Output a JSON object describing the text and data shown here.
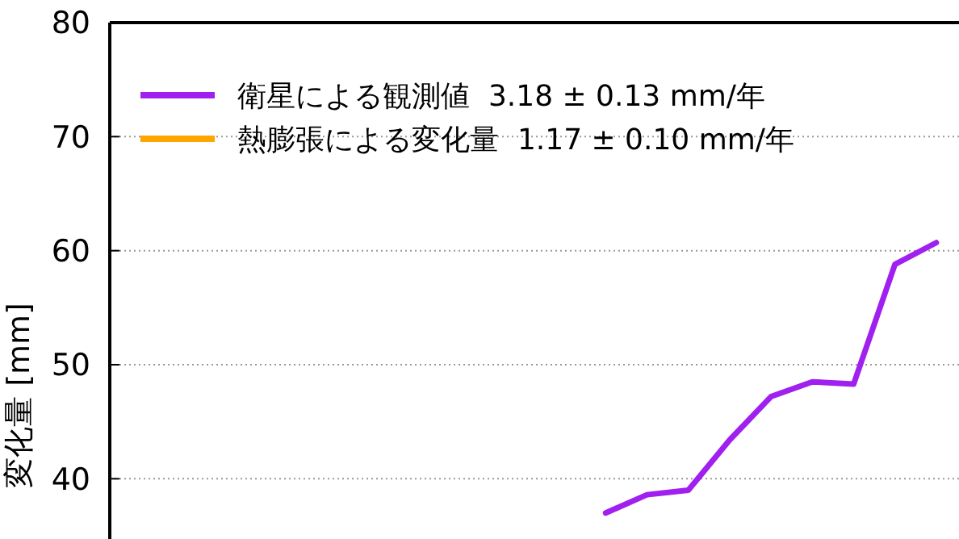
{
  "chart_data": {
    "type": "line",
    "ylabel": "変化量 [mm]",
    "categories": [
      null,
      null,
      null,
      null,
      null,
      null,
      null,
      null,
      null,
      null,
      null,
      null,
      null,
      null,
      null,
      null,
      null,
      null,
      null,
      null,
      null
    ],
    "series": [
      {
        "name": "衛星による観測値  3.18 ± 0.13 mm/年",
        "color": "#a020f0",
        "values": [
          null,
          null,
          null,
          null,
          null,
          null,
          null,
          null,
          null,
          null,
          null,
          null,
          37.0,
          38.6,
          39.0,
          43.4,
          47.2,
          48.5,
          48.3,
          58.8,
          60.7
        ]
      },
      {
        "name": "熱膨張による変化量  1.17 ± 0.10 mm/年",
        "color": "#ffa500",
        "values": [
          null,
          null,
          null,
          null,
          null,
          null,
          null,
          null,
          null,
          null,
          null,
          null,
          null,
          null,
          null,
          null,
          null,
          null,
          null,
          null,
          null
        ]
      }
    ],
    "ylim": [
      35,
      80
    ],
    "yticks": [
      40,
      50,
      60,
      70,
      80
    ],
    "grid": "y",
    "legend": "top left",
    "tick_labels": "y",
    "line_style": "solid",
    "marker": "none"
  }
}
